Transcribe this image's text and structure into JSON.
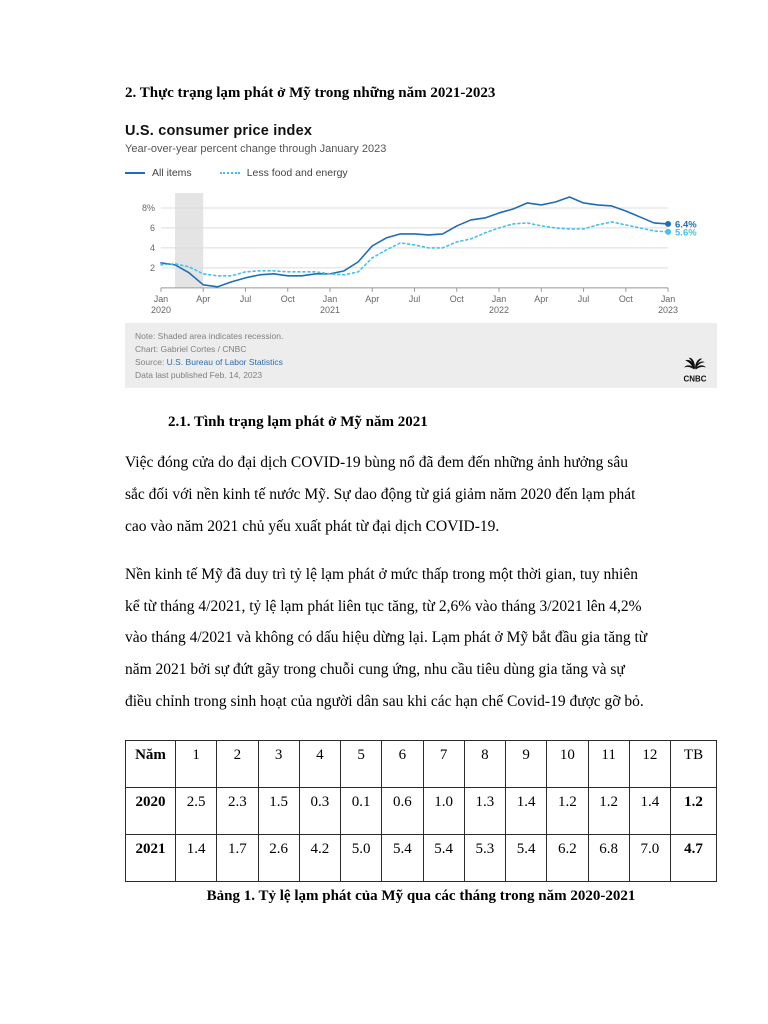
{
  "doc": {
    "heading": "2. Thực trạng lạm phát ở Mỹ trong những năm 2021-2023",
    "subheading": "2.1. Tình trạng lạm phát ở Mỹ năm 2021",
    "paragraphs": [
      "Việc đóng cửa do đại dịch COVID-19 bùng nổ đã đem đến những ảnh hưởng sâu sắc đối với nền kinh tế nước Mỹ. Sự dao động từ giá giảm năm 2020 đến lạm phát cao vào năm 2021 chủ yếu xuất phát từ đại dịch COVID-19.",
      "Nền kinh tế Mỹ đã duy trì tỷ lệ lạm phát ở mức thấp trong một thời gian, tuy nhiên kể từ tháng 4/2021, tỷ lệ lạm phát liên tục tăng, từ 2,6% vào tháng 3/2021 lên 4,2% vào tháng 4/2021 và không có dấu hiệu dừng lại.  Lạm phát ở Mỹ bắt đầu gia tăng từ năm 2021 bởi sự đứt gãy trong chuỗi cung ứng, nhu cầu tiêu dùng gia tăng và sự điều chỉnh trong sinh hoạt của người dân sau khi các hạn chế Covid-19 được gỡ bỏ.",
      ""
    ],
    "table_caption": "Bảng 1. Tỷ lệ lạm phát của Mỹ qua các tháng trong năm 2020-2021"
  },
  "chart": {
    "title": "U.S. consumer price index",
    "subtitle": "Year-over-year percent change through January 2023",
    "legend": [
      {
        "label": "All items"
      },
      {
        "label": "Less food and energy"
      }
    ],
    "note": "Note: Shaded area indicates recession.",
    "credit": "Chart: Gabriel Cortes / CNBC",
    "source_prefix": "Source: ",
    "source_link": "U.S. Bureau of Labor Statistics",
    "published": "Data last published Feb. 14, 2023",
    "logo_text": "CNBC"
  },
  "chart_data": {
    "type": "line",
    "title": "U.S. consumer price index",
    "subtitle": "Year-over-year percent change through January 2023",
    "ylim": [
      0,
      9.5
    ],
    "grid": true,
    "legend_position": "top-left",
    "yticks": [
      {
        "v": 2,
        "label": "2"
      },
      {
        "v": 4,
        "label": "4"
      },
      {
        "v": 6,
        "label": "6"
      },
      {
        "v": 8,
        "label": "8%"
      }
    ],
    "recession_band": [
      1,
      3
    ],
    "x": [
      "Jan 2020",
      "Feb 2020",
      "Mar 2020",
      "Apr 2020",
      "May 2020",
      "Jun 2020",
      "Jul 2020",
      "Aug 2020",
      "Sep 2020",
      "Oct 2020",
      "Nov 2020",
      "Dec 2020",
      "Jan 2021",
      "Feb 2021",
      "Mar 2021",
      "Apr 2021",
      "May 2021",
      "Jun 2021",
      "Jul 2021",
      "Aug 2021",
      "Sep 2021",
      "Oct 2021",
      "Nov 2021",
      "Dec 2021",
      "Jan 2022",
      "Feb 2022",
      "Mar 2022",
      "Apr 2022",
      "May 2022",
      "Jun 2022",
      "Jul 2022",
      "Aug 2022",
      "Sep 2022",
      "Oct 2022",
      "Nov 2022",
      "Dec 2022",
      "Jan 2023"
    ],
    "series": [
      {
        "name": "All items",
        "color": "#1f6eb4",
        "dashed": false,
        "end_label": "6.4%",
        "values": [
          2.5,
          2.3,
          1.5,
          0.3,
          0.1,
          0.6,
          1.0,
          1.3,
          1.4,
          1.2,
          1.2,
          1.4,
          1.4,
          1.7,
          2.6,
          4.2,
          5.0,
          5.4,
          5.4,
          5.3,
          5.4,
          6.2,
          6.8,
          7.0,
          7.5,
          7.9,
          8.5,
          8.3,
          8.6,
          9.1,
          8.5,
          8.3,
          8.2,
          7.7,
          7.1,
          6.5,
          6.4
        ]
      },
      {
        "name": "Less food and energy",
        "color": "#45c0e8",
        "dashed": true,
        "end_label": "5.6%",
        "values": [
          2.3,
          2.4,
          2.1,
          1.4,
          1.2,
          1.2,
          1.6,
          1.7,
          1.7,
          1.6,
          1.6,
          1.6,
          1.4,
          1.3,
          1.6,
          3.0,
          3.8,
          4.5,
          4.3,
          4.0,
          4.0,
          4.6,
          4.9,
          5.5,
          6.0,
          6.4,
          6.5,
          6.2,
          6.0,
          5.9,
          5.9,
          6.3,
          6.6,
          6.3,
          6.0,
          5.7,
          5.6
        ]
      }
    ]
  },
  "table": {
    "headers": [
      "Năm",
      "1",
      "2",
      "3",
      "4",
      "5",
      "6",
      "7",
      "8",
      "9",
      "10",
      "11",
      "12",
      "TB"
    ],
    "rows": [
      {
        "label": "2020",
        "values": [
          "2.5",
          "2.3",
          "1.5",
          "0.3",
          "0.1",
          "0.6",
          "1.0",
          "1.3",
          "1.4",
          "1.2",
          "1.2",
          "1.4"
        ],
        "avg": "1.2"
      },
      {
        "label": "2021",
        "values": [
          "1.4",
          "1.7",
          "2.6",
          "4.2",
          "5.0",
          "5.4",
          "5.4",
          "5.3",
          "5.4",
          "6.2",
          "6.8",
          "7.0"
        ],
        "avg": "4.7"
      }
    ]
  }
}
